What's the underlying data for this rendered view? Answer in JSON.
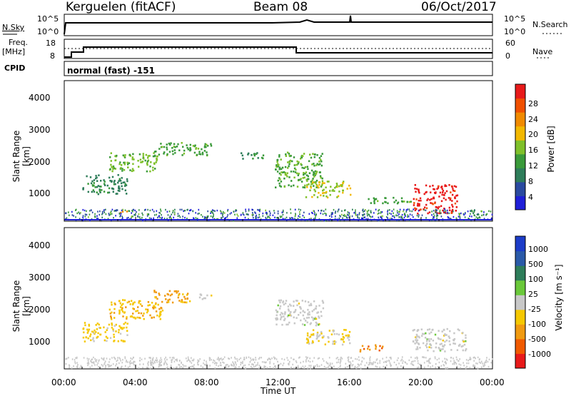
{
  "header": {
    "station": "Kerguelen (fitACF)",
    "beam": "Beam 08",
    "date": "06/Oct/2017"
  },
  "panels": {
    "nsky": {
      "left_label": "N.Sky",
      "right_label": "N.Search",
      "top_tick": "10^5",
      "bottom_tick": "10^0"
    },
    "freq": {
      "label_line1": "Freq.",
      "label_line2": "[MHz]",
      "right_label": "Nave",
      "left_top": "18",
      "left_bottom": "8",
      "right_top": "60",
      "right_bottom": "0"
    },
    "cpid": {
      "label": "CPID",
      "value": "normal (fast) -151"
    }
  },
  "axes": {
    "xlabel": "Time UT",
    "ylabel": "Slant Range [km]",
    "xticks": [
      "00:00",
      "04:00",
      "08:00",
      "12:00",
      "16:00",
      "20:00",
      "00:00"
    ],
    "yticks": [
      "1000",
      "2000",
      "3000",
      "4000"
    ]
  },
  "colorbars": {
    "power": {
      "label": "Power [dB]",
      "ticks": [
        "28",
        "24",
        "20",
        "16",
        "12",
        "8",
        "4"
      ],
      "colors": [
        "#1f1fd8",
        "#2a4aa0",
        "#2e7d5a",
        "#3a9a3a",
        "#7fc02a",
        "#f2b800",
        "#f08a00",
        "#f05000",
        "#e81a1a"
      ]
    },
    "velocity": {
      "label": "Velocity [m s⁻¹]",
      "ticks": [
        "1000",
        "500",
        "100",
        "25",
        "-25",
        "-100",
        "-500",
        "-1000"
      ],
      "colors": [
        "#1c3cc8",
        "#2a5aa8",
        "#2e7d5a",
        "#6ac83a",
        "#c8c8c8",
        "#f5c800",
        "#f09a10",
        "#f05a00",
        "#e81a1a"
      ]
    }
  },
  "chart_data": [
    {
      "type": "heatmap",
      "title": "Power [dB]",
      "xlabel": "Time UT",
      "ylabel": "Slant Range [km]",
      "x_range_hours": [
        0,
        24
      ],
      "y_range_km": [
        180,
        4500
      ],
      "value_range": [
        0,
        30
      ],
      "patches": [
        {
          "t0": 1.0,
          "t1": 3.5,
          "r0": 1000,
          "r1": 1600,
          "v": 9
        },
        {
          "t0": 2.5,
          "t1": 5.2,
          "r0": 1700,
          "r1": 2300,
          "v": 14
        },
        {
          "t0": 5.0,
          "t1": 8.2,
          "r0": 2200,
          "r1": 2600,
          "v": 12
        },
        {
          "t0": 9.8,
          "t1": 11.2,
          "r0": 2100,
          "r1": 2300,
          "v": 11
        },
        {
          "t0": 11.8,
          "t1": 14.5,
          "r0": 1200,
          "r1": 2300,
          "v": 13
        },
        {
          "t0": 13.5,
          "t1": 16.0,
          "r0": 900,
          "r1": 1400,
          "v": 16
        },
        {
          "t0": 17.0,
          "t1": 19.5,
          "r0": 700,
          "r1": 900,
          "v": 12
        },
        {
          "t0": 19.5,
          "t1": 22.0,
          "r0": 400,
          "r1": 1300,
          "v": 28
        },
        {
          "t0": 3.0,
          "t1": 3.7,
          "r0": 400,
          "r1": 500,
          "v": 22
        }
      ]
    },
    {
      "type": "heatmap",
      "title": "Velocity [m s⁻¹]",
      "xlabel": "Time UT",
      "ylabel": "Slant Range [km]",
      "x_range_hours": [
        0,
        24
      ],
      "y_range_km": [
        180,
        4500
      ],
      "value_range": [
        -1000,
        1000
      ],
      "patches": [
        {
          "t0": 1.0,
          "t1": 3.5,
          "r0": 1000,
          "r1": 1600,
          "v": -200
        },
        {
          "t0": 2.5,
          "t1": 5.5,
          "r0": 1700,
          "r1": 2300,
          "v": -300
        },
        {
          "t0": 5.0,
          "t1": 7.0,
          "r0": 2200,
          "r1": 2600,
          "v": -400
        },
        {
          "t0": 7.5,
          "t1": 8.3,
          "r0": 2300,
          "r1": 2500,
          "v": 0
        },
        {
          "t0": 11.8,
          "t1": 14.5,
          "r0": 1500,
          "r1": 2300,
          "v": 0
        },
        {
          "t0": 13.5,
          "t1": 16.0,
          "r0": 900,
          "r1": 1400,
          "v": -150
        },
        {
          "t0": 16.5,
          "t1": 17.8,
          "r0": 700,
          "r1": 900,
          "v": -500
        },
        {
          "t0": 19.5,
          "t1": 22.5,
          "r0": 700,
          "r1": 1400,
          "v": 0
        }
      ]
    }
  ]
}
